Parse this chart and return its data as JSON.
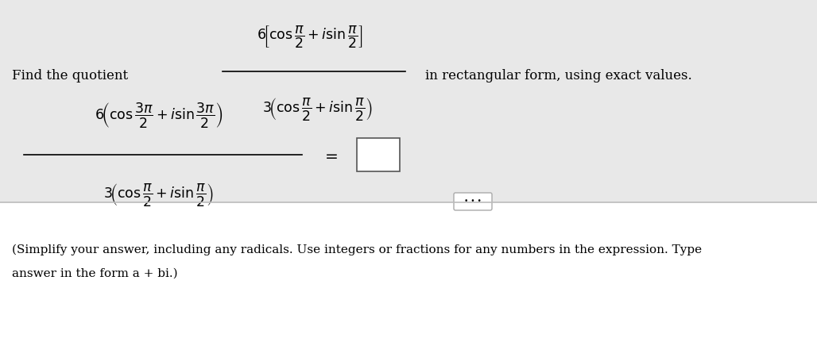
{
  "bg_top": "#e8e8e8",
  "bg_bottom": "#ffffff",
  "divider_color": "#bbbbbb",
  "text_color": "#000000",
  "find_quotient": "Find the quotient",
  "in_rect_form": "in rectangular form, using exact values.",
  "simplify_line1": "(Simplify your answer, including any radicals. Use integers or fractions for any numbers in the expression. Type",
  "simplify_line2": "answer in the form a + bi.)",
  "top_numerator": "$6\\!\\left[\\cos\\dfrac{\\pi}{2}+i\\sin\\dfrac{\\pi}{2}\\right]$",
  "top_denominator": "$3\\!\\left(\\cos\\dfrac{\\pi}{2}+i\\sin\\dfrac{\\pi}{2}\\right)$",
  "bot_numerator": "$6\\!\\left(\\cos\\dfrac{3\\pi}{2}+i\\sin\\dfrac{3\\pi}{2}\\right)$",
  "bot_denominator": "$3\\!\\left(\\cos\\dfrac{\\pi}{2}+i\\sin\\dfrac{\\pi}{2}\\right)$",
  "fs_label": 12,
  "fs_math": 12.5,
  "fs_small": 11
}
